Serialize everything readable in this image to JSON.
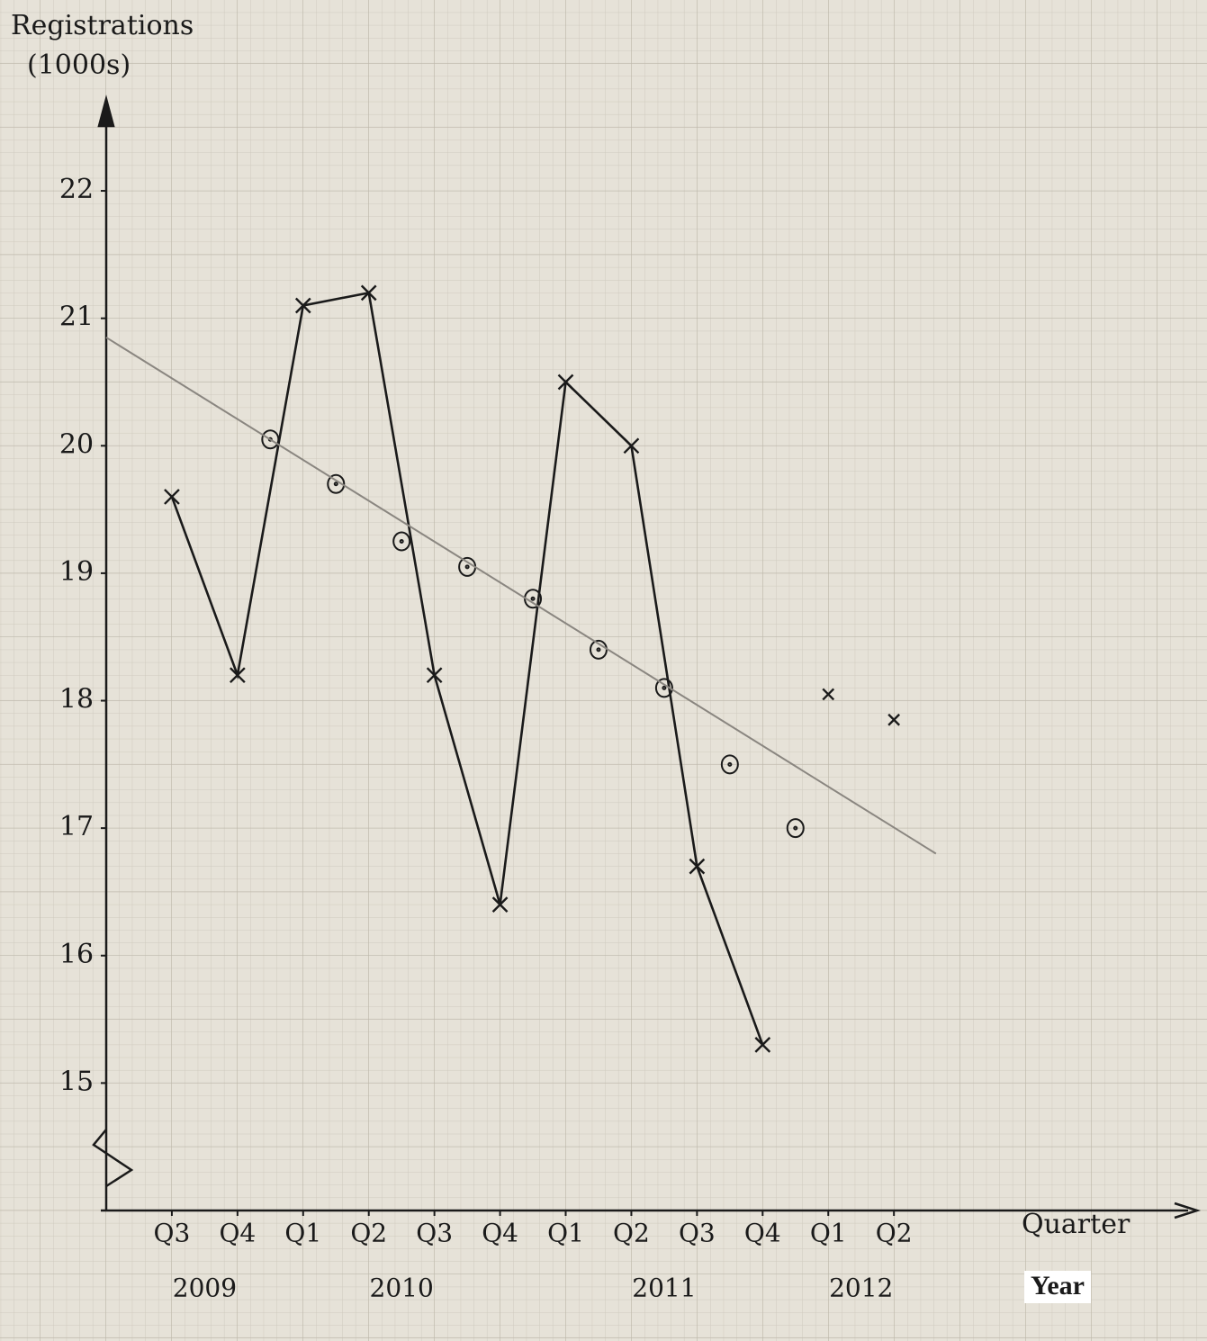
{
  "chart_data": {
    "type": "line",
    "y_label": [
      "Registrations",
      "(1000s)"
    ],
    "x_label": "Quarter",
    "year_label": "Year",
    "year_labels": [
      "2009",
      "2010",
      "2011",
      "2012"
    ],
    "xlim": [
      -1,
      15.55
    ],
    "ylim": [
      14,
      22.65
    ],
    "xticks": [
      {
        "value": 0,
        "label": "Q3"
      },
      {
        "value": 1,
        "label": "Q4"
      },
      {
        "value": 2,
        "label": "Q1"
      },
      {
        "value": 3,
        "label": "Q2"
      },
      {
        "value": 4,
        "label": "Q3"
      },
      {
        "value": 5,
        "label": "Q4"
      },
      {
        "value": 6,
        "label": "Q1"
      },
      {
        "value": 7,
        "label": "Q2"
      },
      {
        "value": 8,
        "label": "Q3"
      },
      {
        "value": 9,
        "label": "Q4"
      },
      {
        "value": 10,
        "label": "Q1"
      },
      {
        "value": 11,
        "label": "Q2"
      }
    ],
    "yticks": [
      15,
      16,
      17,
      18,
      19,
      20,
      21,
      22
    ],
    "axis_break": true,
    "series": [
      {
        "color": "#1a1a1a",
        "marker": "x",
        "connect": true,
        "x": [
          0,
          1,
          2,
          3,
          4,
          5,
          6,
          7,
          8,
          9
        ],
        "values": [
          19.6,
          18.2,
          21.1,
          21.2,
          18.2,
          16.4,
          20.5,
          20.0,
          16.7,
          15.3
        ]
      },
      {
        "color": "#1a1a1a",
        "marker": "circle",
        "connect": false,
        "x": [
          1.5,
          2.5,
          3.5,
          4.5,
          5.5,
          6.5,
          7.5
        ],
        "values": [
          20.05,
          19.7,
          19.25,
          19.05,
          18.8,
          18.4,
          18.1
        ]
      },
      {
        "color": "#1a1a1a",
        "marker": "circle",
        "connect": false,
        "x": [
          8.5,
          9.5
        ],
        "values": [
          17.5,
          17.0
        ]
      },
      {
        "color": "#1a1a1a",
        "marker": "x",
        "connect": false,
        "x": [
          10,
          11
        ],
        "values": [
          18.05,
          17.85
        ]
      },
      {
        "color": "#8a8680",
        "marker": "none",
        "connect": true,
        "x": [
          -1,
          11.64
        ],
        "values": [
          20.85,
          16.8
        ]
      }
    ]
  }
}
